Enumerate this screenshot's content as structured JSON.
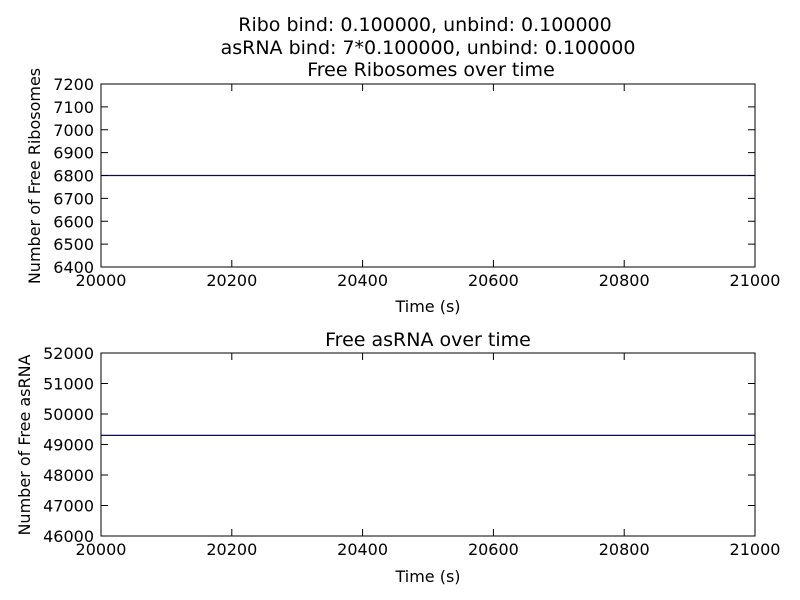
{
  "figure": {
    "title_lines": [
      "Ribo bind: 0.100000, unbind: 0.100000",
      "asRNA bind: 7*0.100000, unbind: 0.100000"
    ]
  },
  "chart_data": [
    {
      "type": "line",
      "title": "Free Ribosomes over time",
      "xlabel": "Time (s)",
      "ylabel": "Number of Free Ribosomes",
      "xlim": [
        20000,
        21000
      ],
      "ylim": [
        6400,
        7200
      ],
      "xticks": [
        "20000",
        "20200",
        "20400",
        "20600",
        "20800",
        "21000"
      ],
      "yticks": [
        "6400",
        "6500",
        "6600",
        "6700",
        "6800",
        "6900",
        "7000",
        "7100",
        "7200"
      ],
      "grid": false,
      "series": [
        {
          "x": [
            20000,
            21000
          ],
          "y": [
            6800,
            6800
          ],
          "color": "#0000b3"
        }
      ]
    },
    {
      "type": "line",
      "title": "Free asRNA over time",
      "xlabel": "Time (s)",
      "ylabel": "Number of Free asRNA",
      "xlim": [
        20000,
        21000
      ],
      "ylim": [
        46000,
        52000
      ],
      "xticks": [
        "20000",
        "20200",
        "20400",
        "20600",
        "20800",
        "21000"
      ],
      "yticks": [
        "46000",
        "47000",
        "48000",
        "49000",
        "50000",
        "51000",
        "52000"
      ],
      "grid": false,
      "series": [
        {
          "x": [
            20000,
            21000
          ],
          "y": [
            49300,
            49300
          ],
          "color": "#0000b3"
        }
      ]
    }
  ]
}
